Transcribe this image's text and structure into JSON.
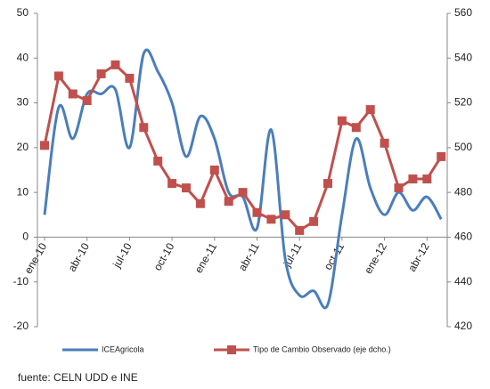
{
  "chart_data": {
    "type": "line",
    "categories": [
      "ene-10",
      null,
      null,
      "abr-10",
      null,
      null,
      "jul-10",
      null,
      null,
      "oct-10",
      null,
      null,
      "ene-11",
      null,
      null,
      "abr-11",
      null,
      null,
      "jul-11",
      null,
      null,
      "oct-11",
      null,
      null,
      "ene-12",
      null,
      null,
      "abr-12",
      null
    ],
    "series": [
      {
        "name": "ICEAgricola",
        "color": "#4a7ebb",
        "values": [
          5,
          29,
          22,
          32,
          32,
          33,
          20,
          41,
          37,
          30,
          18,
          27,
          22,
          10,
          9,
          2,
          24,
          -5,
          -13,
          -12,
          -15,
          5,
          22,
          11,
          5,
          10,
          6,
          9,
          4
        ]
      },
      {
        "name": "Tipo de Cambio Observado (eje dcho.)",
        "color": "#c0504d",
        "axis": "y2",
        "marker": "square",
        "values": [
          501,
          532,
          524,
          521,
          533,
          537,
          531,
          509,
          494,
          484,
          482,
          475,
          490,
          476,
          480,
          471,
          468,
          470,
          463,
          467,
          484,
          512,
          509,
          517,
          502,
          482,
          486,
          486,
          496
        ]
      }
    ],
    "ylim": [
      -20,
      50
    ],
    "yticks": [
      -20,
      -10,
      0,
      10,
      20,
      30,
      40,
      50
    ],
    "y2lim": [
      420,
      560
    ],
    "y2ticks": [
      420,
      440,
      460,
      480,
      500,
      520,
      540,
      560
    ],
    "legend": "bottom",
    "source": "fuente: CELN UDD e INE"
  }
}
